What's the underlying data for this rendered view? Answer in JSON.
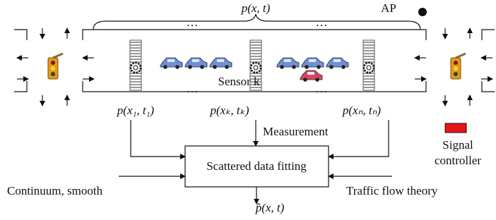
{
  "labels": {
    "road_density": "p(x, t)",
    "ap": "AP",
    "sensor": "Sensor k",
    "ellipses": [
      "…",
      "…",
      "…",
      "…"
    ],
    "samples": [
      "p(x₁, t₁)",
      "p(xₖ, tₖ)",
      "p(xₙ, tₙ)"
    ],
    "measurement": "Measurement",
    "signal_controller": [
      "Signal",
      "controller"
    ],
    "process": "Scattered data fitting",
    "inputs": [
      "Continuum, smooth",
      "Traffic flow theory"
    ],
    "output": "p̂(x, t)"
  }
}
